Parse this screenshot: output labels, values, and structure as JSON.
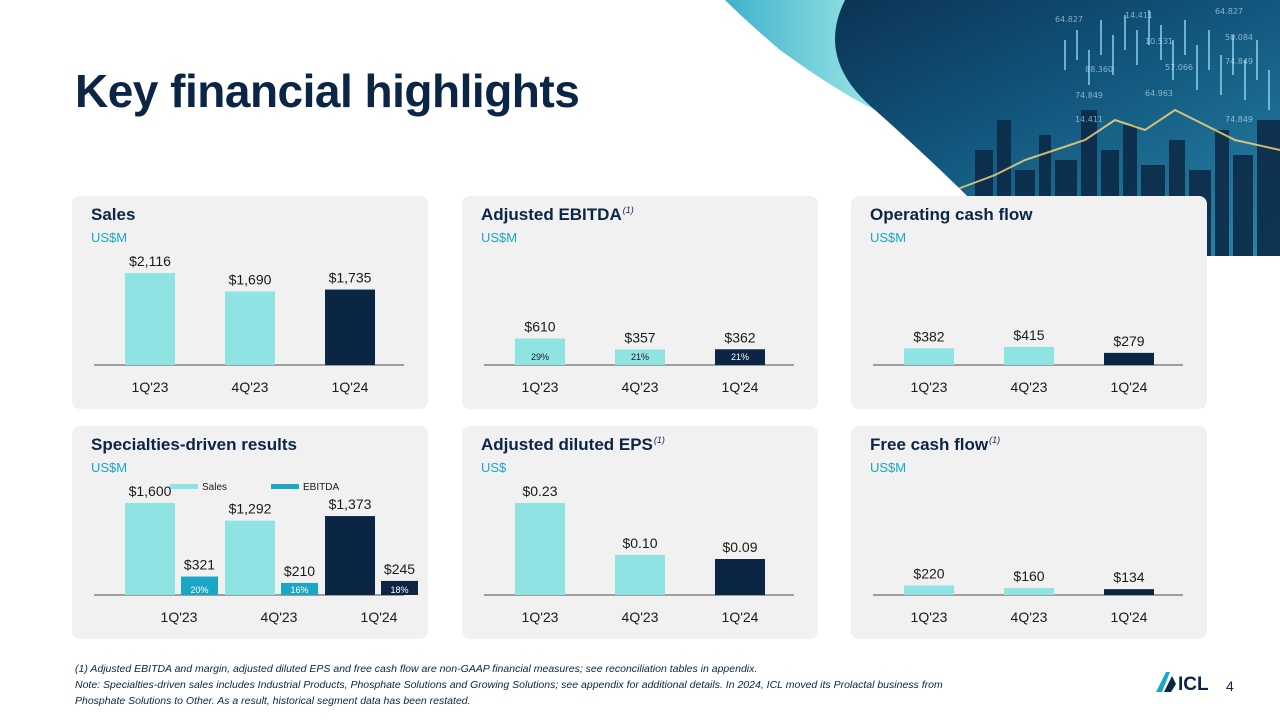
{
  "page": {
    "title": "Key financial highlights",
    "page_number": "4",
    "logo_text": "ICL"
  },
  "colors": {
    "light_bar": "#8fe3e3",
    "dark_bar": "#0b2545",
    "ebitda_bar": "#1ba5c6",
    "accent_text": "#1ba5c6",
    "card_bg": "#f1f1f1"
  },
  "footnotes": {
    "line1": "(1) Adjusted EBITDA and margin, adjusted diluted EPS and free cash flow are non-GAAP financial measures;  see reconciliation  tables in appendix.",
    "line2": "Note: Specialties-driven  sales includes Industrial Products, Phosphate Solutions and Growing Solutions; see appendix for additional details. In 2024, ICL moved its Prolactal business from",
    "line3": "Phosphate Solutions to Other. As a result, historical segment data has been restated."
  },
  "cards": {
    "sales": {
      "title": "Sales",
      "sup": "",
      "unit": "US$M"
    },
    "ebitda": {
      "title": "Adjusted EBITDA",
      "sup": "(1)",
      "unit": "US$M"
    },
    "ocf": {
      "title": "Operating cash flow",
      "sup": "",
      "unit": "US$M"
    },
    "specialties": {
      "title": "Specialties-driven results",
      "sup": "",
      "unit": "US$M"
    },
    "eps": {
      "title": "Adjusted diluted EPS",
      "sup": "(1)",
      "unit": "US$"
    },
    "fcf": {
      "title": "Free cash flow",
      "sup": "(1)",
      "unit": "US$M"
    }
  },
  "chart_data": [
    {
      "id": "sales",
      "type": "bar",
      "categories": [
        "1Q'23",
        "4Q'23",
        "1Q'24"
      ],
      "values": [
        2116,
        1690,
        1735
      ],
      "labels": [
        "$2,116",
        "$1,690",
        "$1,735"
      ],
      "ylim": [
        0,
        2116
      ]
    },
    {
      "id": "ebitda",
      "type": "bar",
      "categories": [
        "1Q'23",
        "4Q'23",
        "1Q'24"
      ],
      "values": [
        610,
        357,
        362
      ],
      "labels": [
        "$610",
        "$357",
        "$362"
      ],
      "margins": [
        "29%",
        "21%",
        "21%"
      ],
      "ylim": [
        0,
        2116
      ]
    },
    {
      "id": "ocf",
      "type": "bar",
      "categories": [
        "1Q'23",
        "4Q'23",
        "1Q'24"
      ],
      "values": [
        382,
        415,
        279
      ],
      "labels": [
        "$382",
        "$415",
        "$279"
      ],
      "ylim": [
        0,
        2116
      ]
    },
    {
      "id": "specialties",
      "type": "bar",
      "categories": [
        "1Q'23",
        "4Q'23",
        "1Q'24"
      ],
      "legend": [
        "Sales",
        "EBITDA"
      ],
      "series": [
        {
          "name": "Sales",
          "values": [
            1600,
            1292,
            1373
          ],
          "labels": [
            "$1,600",
            "$1,292",
            "$1,373"
          ]
        },
        {
          "name": "EBITDA",
          "values": [
            321,
            210,
            245
          ],
          "labels": [
            "$321",
            "$210",
            "$245"
          ],
          "margins": [
            "20%",
            "16%",
            "18%"
          ]
        }
      ],
      "ylim": [
        0,
        1600
      ]
    },
    {
      "id": "eps",
      "type": "bar",
      "categories": [
        "1Q'23",
        "4Q'23",
        "1Q'24"
      ],
      "values": [
        0.23,
        0.1,
        0.09
      ],
      "labels": [
        "$0.23",
        "$0.10",
        "$0.09"
      ],
      "ylim": [
        0,
        0.23
      ]
    },
    {
      "id": "fcf",
      "type": "bar",
      "categories": [
        "1Q'23",
        "4Q'23",
        "1Q'24"
      ],
      "values": [
        220,
        160,
        134
      ],
      "labels": [
        "$220",
        "$160",
        "$134"
      ],
      "ylim": [
        0,
        2116
      ]
    }
  ]
}
